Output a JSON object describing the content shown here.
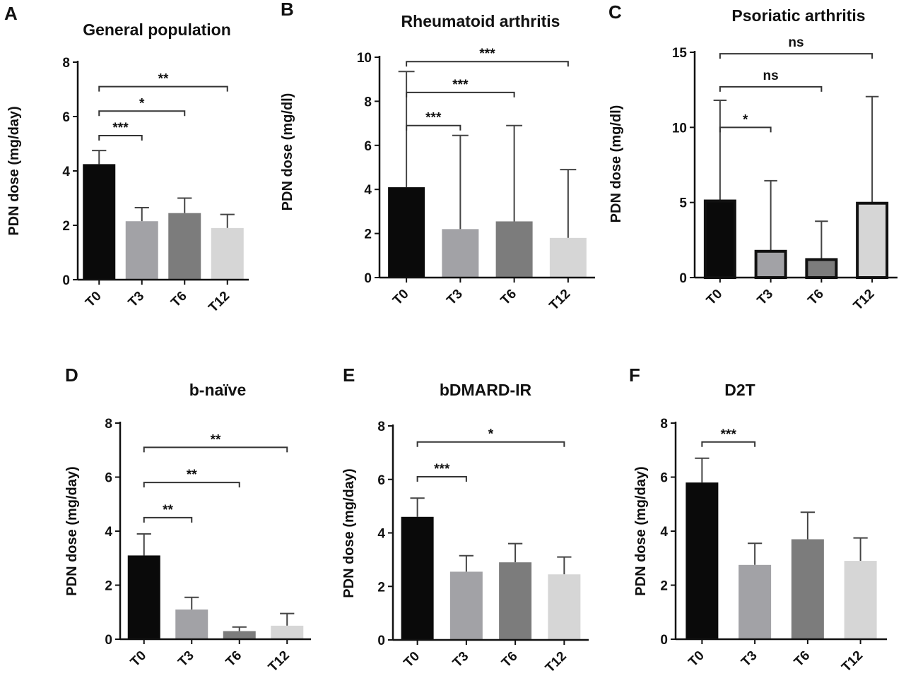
{
  "chart_data": [
    {
      "type": "bar",
      "panel": "A",
      "title": "General population",
      "ylabel": "PDN dose (mg/day)",
      "xlabel": "",
      "ylim": [
        0,
        8
      ],
      "yticks": [
        0,
        2,
        4,
        6,
        8
      ],
      "categories": [
        "T0",
        "T3",
        "T6",
        "T12"
      ],
      "values": [
        4.25,
        2.15,
        2.45,
        1.9
      ],
      "errors": [
        0.5,
        0.5,
        0.55,
        0.5
      ],
      "colors": [
        "#0a0a0a",
        "#a2a2a6",
        "#7c7c7c",
        "#d6d6d6"
      ],
      "bar_style": "plain",
      "significance": [
        {
          "from": "T0",
          "to": "T3",
          "y": 5.3,
          "label": "***"
        },
        {
          "from": "T0",
          "to": "T6",
          "y": 6.2,
          "label": "*"
        },
        {
          "from": "T0",
          "to": "T12",
          "y": 7.1,
          "label": "**"
        }
      ]
    },
    {
      "type": "bar",
      "panel": "B",
      "title": "Rheumatoid arthritis",
      "ylabel": "PDN dose (mg/dl)",
      "xlabel": "",
      "ylim": [
        0,
        10
      ],
      "yticks": [
        0,
        2,
        4,
        6,
        8,
        10
      ],
      "categories": [
        "T0",
        "T3",
        "T6",
        "T12"
      ],
      "values": [
        4.1,
        2.2,
        2.55,
        1.8
      ],
      "errors": [
        5.25,
        4.25,
        4.35,
        3.1
      ],
      "colors": [
        "#0a0a0a",
        "#a2a2a6",
        "#7c7c7c",
        "#d6d6d6"
      ],
      "bar_style": "plain",
      "significance": [
        {
          "from": "T0",
          "to": "T3",
          "y": 6.9,
          "label": "***"
        },
        {
          "from": "T0",
          "to": "T6",
          "y": 8.4,
          "label": "***"
        },
        {
          "from": "T0",
          "to": "T12",
          "y": 9.8,
          "label": "***"
        }
      ]
    },
    {
      "type": "bar",
      "panel": "C",
      "title": "Psoriatic arthritis",
      "ylabel": "PDN dose (mg/dl)",
      "xlabel": "",
      "ylim": [
        0,
        15
      ],
      "yticks": [
        0,
        5,
        10,
        15
      ],
      "categories": [
        "T0",
        "T3",
        "T6",
        "T12"
      ],
      "values": [
        5.1,
        1.75,
        1.2,
        4.95
      ],
      "errors": [
        6.7,
        4.7,
        2.55,
        7.1
      ],
      "colors": [
        "#0a0a0a",
        "#a2a2a6",
        "#7c7c7c",
        "#d6d6d6"
      ],
      "bar_style": "outlined",
      "significance": [
        {
          "from": "T0",
          "to": "T3",
          "y": 10.0,
          "label": "*"
        },
        {
          "from": "T0",
          "to": "T6",
          "y": 12.7,
          "label": "ns"
        },
        {
          "from": "T0",
          "to": "T12",
          "y": 14.9,
          "label": "ns"
        }
      ]
    },
    {
      "type": "bar",
      "panel": "D",
      "title": "b-naïve",
      "ylabel": "PDN dose (mg/day)",
      "xlabel": "",
      "ylim": [
        0,
        8
      ],
      "yticks": [
        0,
        2,
        4,
        6,
        8
      ],
      "categories": [
        "T0",
        "T3",
        "T6",
        "T12"
      ],
      "values": [
        3.1,
        1.1,
        0.3,
        0.5
      ],
      "errors": [
        0.8,
        0.45,
        0.15,
        0.45
      ],
      "colors": [
        "#0a0a0a",
        "#a2a2a6",
        "#7c7c7c",
        "#d6d6d6"
      ],
      "bar_style": "plain",
      "significance": [
        {
          "from": "T0",
          "to": "T3",
          "y": 4.5,
          "label": "**"
        },
        {
          "from": "T0",
          "to": "T6",
          "y": 5.8,
          "label": "**"
        },
        {
          "from": "T0",
          "to": "T12",
          "y": 7.1,
          "label": "**"
        }
      ]
    },
    {
      "type": "bar",
      "panel": "E",
      "title": "bDMARD-IR",
      "ylabel": "PDN dose (mg/day)",
      "xlabel": "",
      "ylim": [
        0,
        8
      ],
      "yticks": [
        0,
        2,
        4,
        6,
        8
      ],
      "categories": [
        "T0",
        "T3",
        "T6",
        "T12"
      ],
      "values": [
        4.6,
        2.55,
        2.9,
        2.45
      ],
      "errors": [
        0.7,
        0.6,
        0.7,
        0.65
      ],
      "colors": [
        "#0a0a0a",
        "#a2a2a6",
        "#7c7c7c",
        "#d6d6d6"
      ],
      "bar_style": "plain",
      "significance": [
        {
          "from": "T0",
          "to": "T3",
          "y": 6.1,
          "label": "***"
        },
        {
          "from": "T0",
          "to": "T12",
          "y": 7.4,
          "label": "*"
        }
      ]
    },
    {
      "type": "bar",
      "panel": "F",
      "title": "D2T",
      "ylabel": "PDN dose (mg/day)",
      "xlabel": "",
      "ylim": [
        0,
        8
      ],
      "yticks": [
        0,
        2,
        4,
        6,
        8
      ],
      "categories": [
        "T0",
        "T3",
        "T6",
        "T12"
      ],
      "values": [
        5.8,
        2.75,
        3.7,
        2.9
      ],
      "errors": [
        0.9,
        0.8,
        1.0,
        0.85
      ],
      "colors": [
        "#0a0a0a",
        "#a2a2a6",
        "#7c7c7c",
        "#d6d6d6"
      ],
      "bar_style": "plain",
      "significance": [
        {
          "from": "T0",
          "to": "T3",
          "y": 7.3,
          "label": "***"
        }
      ]
    }
  ]
}
